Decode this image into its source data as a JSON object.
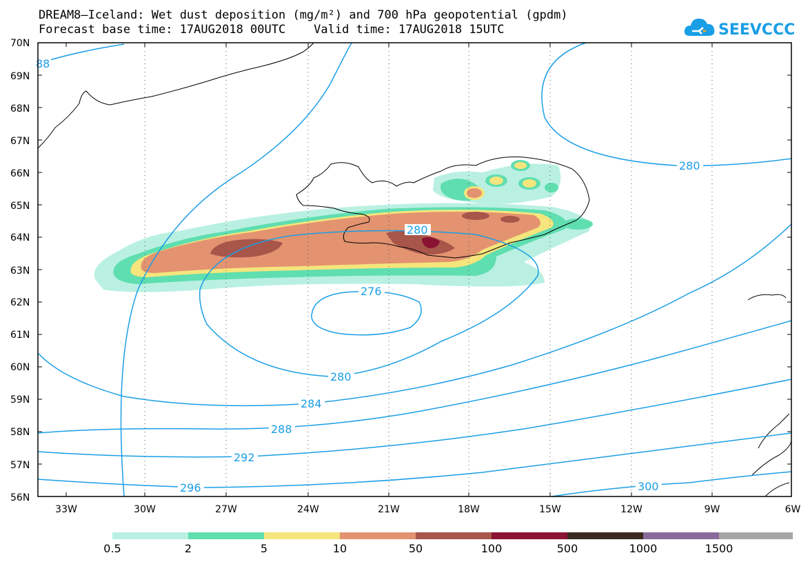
{
  "title": {
    "line1": "DREAM8–Iceland: Wet dust deposition (mg/m²) and 700 hPa geopotential (gpdm)",
    "line2": "Forecast base time: 17AUG2018 00UTC    Valid time: 17AUG2018 15UTC"
  },
  "logo": {
    "text": "SEEVCCC",
    "color": "#1a9ee6"
  },
  "axes": {
    "lat_labels": [
      "70N",
      "69N",
      "68N",
      "67N",
      "66N",
      "65N",
      "64N",
      "63N",
      "62N",
      "61N",
      "60N",
      "59N",
      "58N",
      "57N",
      "56N"
    ],
    "lon_labels": [
      "33W",
      "30W",
      "27W",
      "24W",
      "21W",
      "18W",
      "15W",
      "12W",
      "9W",
      "6W"
    ]
  },
  "contours": {
    "color": "#1a9ee6",
    "labels": [
      "88",
      "280",
      "280",
      "276",
      "280",
      "284",
      "288",
      "292",
      "296",
      "300"
    ]
  },
  "colorbar": {
    "colors": [
      "#b9f0e2",
      "#5ede b0",
      "#f5e57c",
      "#e39370",
      "#a8554a",
      "#8a1232",
      "#3b2a20",
      "#8a6a9a",
      "#a6a6a6"
    ],
    "labels": [
      "0.5",
      "2",
      "5",
      "10",
      "50",
      "100",
      "500",
      "1000",
      "1500"
    ]
  }
}
